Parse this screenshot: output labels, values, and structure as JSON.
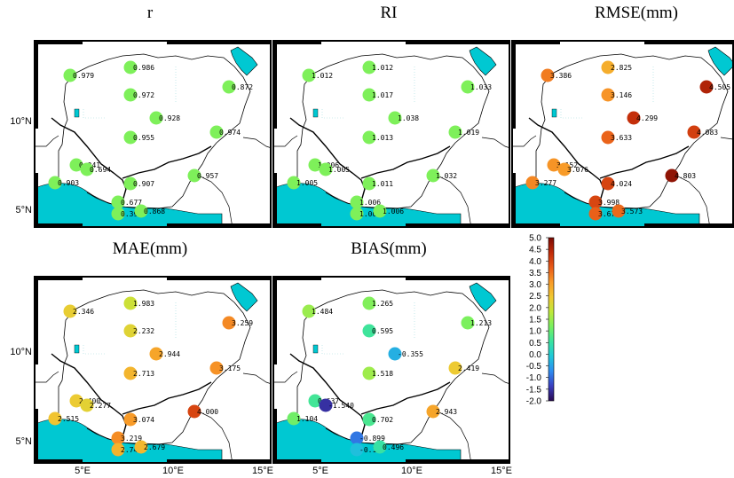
{
  "axis_labels": {
    "y": [
      "10°N",
      "5°N"
    ],
    "x": [
      "5°E",
      "10°E",
      "15°E"
    ]
  },
  "colors": {
    "sea": "#00c8d2",
    "land": "#ffffff",
    "border": "#000000"
  },
  "panels": [
    {
      "key": "r",
      "title": "r",
      "color_mode": "fixed",
      "fixed_color": "#7ef05a",
      "labels": [
        "0.979",
        "0.986",
        "0.972",
        "0.928",
        "0.872",
        "0.955",
        "0.974",
        "0.941",
        "0.694",
        "0.903",
        "0.907",
        "0.957",
        "0.677",
        "0.395",
        "0.868"
      ]
    },
    {
      "key": "ri",
      "title": "RI",
      "color_mode": "fixed",
      "fixed_color": "#7ef05a",
      "labels": [
        "1.012",
        "1.012",
        "1.017",
        "1.038",
        "1.033",
        "1.013",
        "1.019",
        "1.006",
        "1.005",
        "1.005",
        "1.011",
        "1.032",
        "1.006",
        "1.005",
        "1.006"
      ]
    },
    {
      "key": "rmse",
      "title": "RMSE(mm)",
      "color_mode": "scale",
      "labels": [
        "3.386",
        "2.825",
        "3.146",
        "4.299",
        "4.505",
        "3.633",
        "4.083",
        "3.152",
        "3.076",
        "3.277",
        "4.024",
        "4.803",
        "3.998",
        "3.670",
        "3.573"
      ]
    },
    {
      "key": "mae",
      "title": "MAE(mm)",
      "color_mode": "scale",
      "labels": [
        "2.346",
        "1.983",
        "2.232",
        "2.944",
        "3.259",
        "2.713",
        "3.175",
        "2.400",
        "2.277",
        "2.515",
        "3.074",
        "4.000",
        "3.219",
        "2.741",
        "2.679"
      ]
    },
    {
      "key": "bias",
      "title": "BIAS(mm)",
      "color_mode": "scale",
      "labels": [
        "1.484",
        "1.265",
        "0.595",
        "-0.355",
        "1.213",
        "1.518",
        "2.419",
        "0.637",
        "-1.540",
        "1.104",
        "0.702",
        "2.943",
        "-0.899",
        "-0.188",
        "0.496"
      ]
    }
  ],
  "colorbar": {
    "min": -2.0,
    "max": 5.0,
    "ticks": [
      "5.0",
      "4.5",
      "4.0",
      "3.5",
      "3.0",
      "2.5",
      "2.0",
      "1.5",
      "1.0",
      "0.5",
      "0.0",
      "-0.5",
      "-1.0",
      "-1.5",
      "-2.0"
    ],
    "stops": [
      "#2a0a52",
      "#3a3fc0",
      "#2e8cf0",
      "#1ec8d8",
      "#3ae3a0",
      "#78f060",
      "#c0e83a",
      "#f0c832",
      "#f89a28",
      "#e85a18",
      "#c02a08",
      "#7a0a04"
    ]
  }
}
